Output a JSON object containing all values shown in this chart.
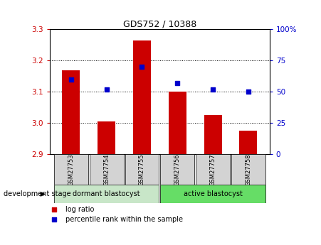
{
  "title": "GDS752 / 10388",
  "samples": [
    "GSM27753",
    "GSM27754",
    "GSM27755",
    "GSM27756",
    "GSM27757",
    "GSM27758"
  ],
  "log_ratios": [
    3.17,
    3.005,
    3.265,
    3.1,
    3.025,
    2.975
  ],
  "percentile_ranks": [
    60,
    52,
    70,
    57,
    52,
    50
  ],
  "bar_bottom": 2.9,
  "ylim_left": [
    2.9,
    3.3
  ],
  "ylim_right": [
    0,
    100
  ],
  "yticks_left": [
    2.9,
    3.0,
    3.1,
    3.2,
    3.3
  ],
  "yticks_right": [
    0,
    25,
    50,
    75,
    100
  ],
  "bar_color": "#cc0000",
  "dot_color": "#0000cc",
  "group1_label": "dormant blastocyst",
  "group2_label": "active blastocyst",
  "group1_color": "#c8e6c8",
  "group2_color": "#66dd66",
  "stage_label": "development stage",
  "legend1": "log ratio",
  "legend2": "percentile rank within the sample",
  "bar_width": 0.5,
  "dot_size": 25,
  "grid_color": "#555555",
  "tick_color_left": "#cc0000",
  "tick_color_right": "#0000cc",
  "sample_box_color": "#d3d3d3"
}
